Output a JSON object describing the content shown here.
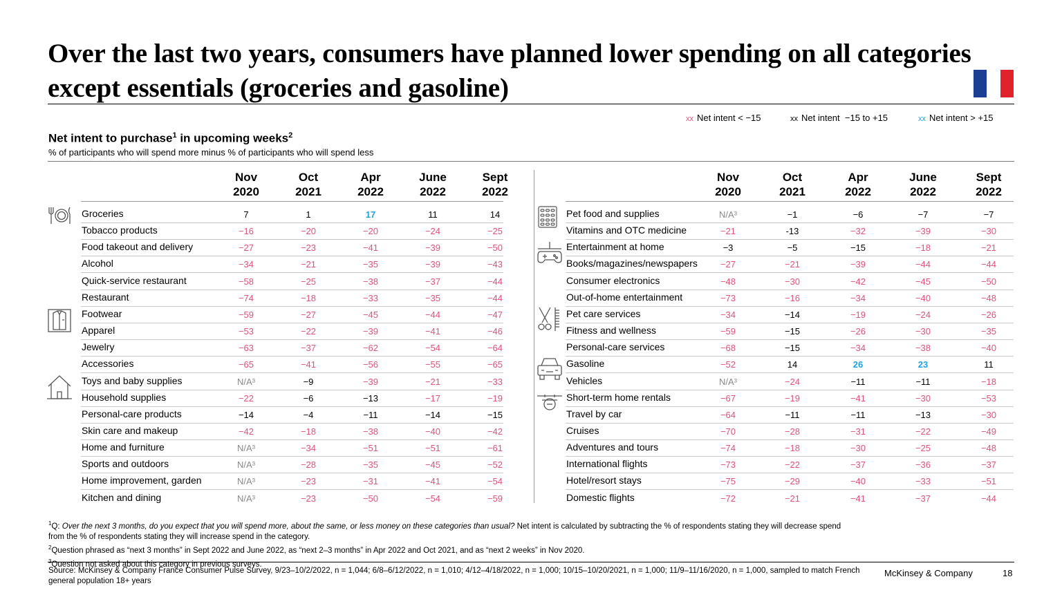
{
  "title": "Over the last two years, consumers have planned lower spending on all categories except essentials (groceries and gasoline)",
  "flag_colors": [
    "#1c3f94",
    "#ffffff",
    "#e2222a"
  ],
  "legend": [
    {
      "marker": "xx",
      "label": "Net intent < −15",
      "color": "#e0507a"
    },
    {
      "marker": "xx",
      "label": "Net intent  −15 to +15",
      "color": "#000000"
    },
    {
      "marker": "xx",
      "label": "Net intent > +15",
      "color": "#1da1e0"
    }
  ],
  "subtitle": {
    "text": "Net intent to purchase",
    "sup1": "1",
    "text2": " in upcoming weeks",
    "sup2": "2"
  },
  "subnote": "% of participants who will spend more minus % of participants who will spend less",
  "chart_data": {
    "type": "table",
    "columns": [
      "Nov\n2020",
      "Oct\n2021",
      "Apr\n2022",
      "June\n2022",
      "Sept\n2022"
    ],
    "thresholds": {
      "low": -15,
      "high": 15
    },
    "left_rows": [
      {
        "label": "Groceries",
        "values": [
          "7",
          "1",
          "17",
          "11",
          "14"
        ]
      },
      {
        "label": "Tobacco products",
        "values": [
          "−16",
          "−20",
          "−20",
          "−24",
          "−25"
        ]
      },
      {
        "label": "Food takeout and delivery",
        "values": [
          "−27",
          "−23",
          "−41",
          "−39",
          "−50"
        ]
      },
      {
        "label": "Alcohol",
        "values": [
          "−34",
          "−21",
          "−35",
          "−39",
          "−43"
        ]
      },
      {
        "label": "Quick-service restaurant",
        "values": [
          "−58",
          "−25",
          "−38",
          "−37",
          "−44"
        ]
      },
      {
        "label": "Restaurant",
        "values": [
          "−74",
          "−18",
          "−33",
          "−35",
          "−44"
        ]
      },
      {
        "label": "Footwear",
        "values": [
          "−59",
          "−27",
          "−45",
          "−44",
          "−47"
        ]
      },
      {
        "label": "Apparel",
        "values": [
          "−53",
          "−22",
          "−39",
          "−41",
          "−46"
        ]
      },
      {
        "label": "Jewelry",
        "values": [
          "−63",
          "−37",
          "−62",
          "−54",
          "−64"
        ]
      },
      {
        "label": "Accessories",
        "values": [
          "−65",
          "−41",
          "−56",
          "−55",
          "−65"
        ]
      },
      {
        "label": "Toys and baby supplies",
        "values": [
          "N/A³",
          "−9",
          "−39",
          "−21",
          "−33"
        ]
      },
      {
        "label": "Household supplies",
        "values": [
          "−22",
          "−6",
          "−13",
          "−17",
          "−19"
        ]
      },
      {
        "label": "Personal-care products",
        "values": [
          "−14",
          "−4",
          "−11",
          "−14",
          "−15"
        ]
      },
      {
        "label": "Skin care and makeup",
        "values": [
          "−42",
          "−18",
          "−38",
          "−40",
          "−42"
        ]
      },
      {
        "label": "Home and furniture",
        "values": [
          "N/A³",
          "−34",
          "−51",
          "−51",
          "−61"
        ]
      },
      {
        "label": "Sports and outdoors",
        "values": [
          "N/A³",
          "−28",
          "−35",
          "−45",
          "−52"
        ]
      },
      {
        "label": "Home improvement, garden",
        "values": [
          "N/A³",
          "−23",
          "−31",
          "−41",
          "−54"
        ]
      },
      {
        "label": "Kitchen and dining",
        "values": [
          "N/A³",
          "−23",
          "−50",
          "−54",
          "−59"
        ]
      }
    ],
    "right_rows": [
      {
        "label": "Pet food and supplies",
        "values": [
          "N/A³",
          "−1",
          "−6",
          "−7",
          "−7"
        ]
      },
      {
        "label": "Vitamins and OTC medicine",
        "values": [
          "−21",
          "-13",
          "−32",
          "−39",
          "−30"
        ]
      },
      {
        "label": "Entertainment at home",
        "values": [
          "−3",
          "−5",
          "−15",
          "−18",
          "−21"
        ]
      },
      {
        "label": "Books/magazines/newspapers",
        "values": [
          "−27",
          "−21",
          "−39",
          "−44",
          "−44"
        ]
      },
      {
        "label": "Consumer electronics",
        "values": [
          "−48",
          "−30",
          "−42",
          "−45",
          "−50"
        ]
      },
      {
        "label": "Out-of-home entertainment",
        "values": [
          "−73",
          "−16",
          "−34",
          "−40",
          "−48"
        ]
      },
      {
        "label": "Pet care services",
        "values": [
          "−34",
          "−14",
          "−19",
          "−24",
          "−26"
        ]
      },
      {
        "label": "Fitness and wellness",
        "values": [
          "−59",
          "−15",
          "−26",
          "−30",
          "−35"
        ]
      },
      {
        "label": "Personal-care services",
        "values": [
          "−68",
          "−15",
          "−34",
          "−38",
          "−40"
        ]
      },
      {
        "label": "Gasoline",
        "values": [
          "−52",
          "14",
          "26",
          "23",
          "11"
        ]
      },
      {
        "label": "Vehicles",
        "values": [
          "N/A³",
          "−24",
          "−11",
          "−11",
          "−18"
        ]
      },
      {
        "label": "Short-term home rentals",
        "values": [
          "−67",
          "−19",
          "−41",
          "−30",
          "−53"
        ]
      },
      {
        "label": "Travel by car",
        "values": [
          "−64",
          "−11",
          "−11",
          "−13",
          "−30"
        ]
      },
      {
        "label": "Cruises",
        "values": [
          "−70",
          "−28",
          "−31",
          "−22",
          "−49"
        ]
      },
      {
        "label": "Adventures and tours",
        "values": [
          "−74",
          "−18",
          "−30",
          "−25",
          "−48"
        ]
      },
      {
        "label": "International flights",
        "values": [
          "−73",
          "−22",
          "−37",
          "−36",
          "−37"
        ]
      },
      {
        "label": "Hotel/resort stays",
        "values": [
          "−75",
          "−29",
          "−40",
          "−33",
          "−51"
        ]
      },
      {
        "label": "Domestic flights",
        "values": [
          "−72",
          "−21",
          "−41",
          "−37",
          "−44"
        ]
      }
    ]
  },
  "icons": {
    "left": [
      "fork-plate-icon",
      "shirt-icon",
      "house-icon"
    ],
    "right": [
      "pill-pack-icon",
      "gamepad-icon",
      "scissors-comb-icon",
      "car-icon",
      "plane-icon"
    ]
  },
  "footnotes": {
    "f1_sup": "1",
    "f1_prefix": "Q: ",
    "f1_italic": "Over the next 3 months, do you expect that you will spend more, about the same, or less money on these categories than usual?",
    "f1_rest": " Net intent is calculated by subtracting the % of respondents stating they will decrease spend from the % of respondents stating they will increase spend in the category.",
    "f2_sup": "2",
    "f2": "Question phrased as “next 3 months” in Sept 2022 and June 2022, as “next 2–3 months” in Apr 2022 and Oct 2021, and as “next 2 weeks” in Nov 2020.",
    "f3_sup": "3",
    "f3": "Question not asked about this category in previous surveys."
  },
  "source": "Source: McKinsey & Company France Consumer Pulse Survey, 9/23–10/2/2022, n = 1,044; 6/8–6/12/2022, n = 1,010; 4/12–4/18/2022, n = 1,000; 10/15–10/20/2021, n = 1,000; 11/9–11/16/2020, n = 1,000, sampled to match French general population 18+ years",
  "brand": "McKinsey & Company",
  "page_number": "18"
}
